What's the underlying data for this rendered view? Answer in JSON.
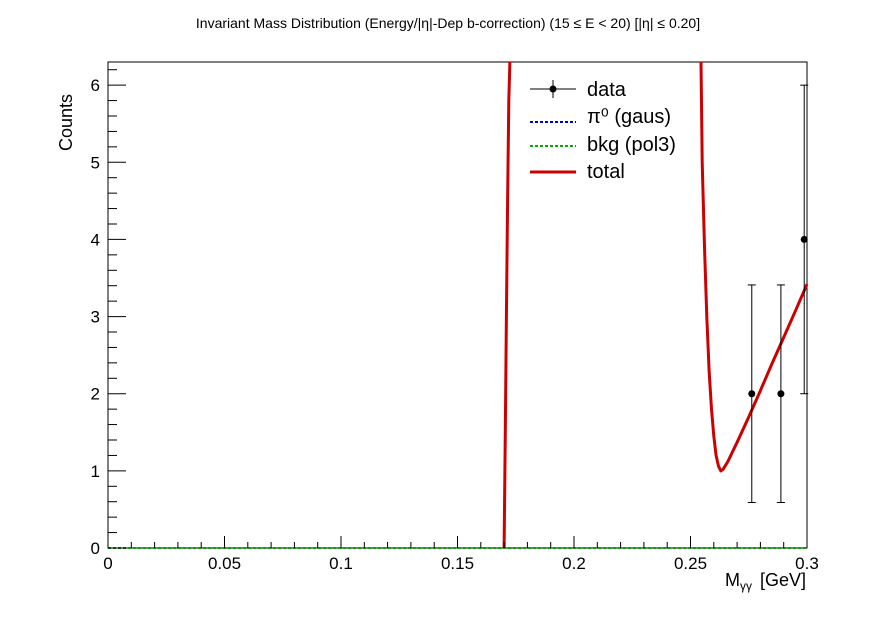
{
  "chart_data": {
    "type": "scatter",
    "title": "Invariant Mass Distribution (Energy/|η|-Dep b-correction)   (15 ≤ E < 20)   [|η| ≤ 0.20]",
    "xlabel": "M",
    "xlabel_sub": "γγ",
    "xlabel_unit": "[GeV]",
    "ylabel": "Counts",
    "xlim": [
      0,
      0.3
    ],
    "ylim": [
      0,
      6.3
    ],
    "x_ticks": [
      0,
      0.05,
      0.1,
      0.15,
      0.2,
      0.25,
      0.3
    ],
    "x_tick_labels": [
      "0",
      "0.05",
      "0.1",
      "0.15",
      "0.2",
      "0.25",
      "0.3"
    ],
    "y_ticks": [
      0,
      1,
      2,
      3,
      4,
      5,
      6
    ],
    "y_tick_labels": [
      "0",
      "1",
      "2",
      "3",
      "4",
      "5",
      "6"
    ],
    "grid": false,
    "legend_position": "top-right",
    "series": [
      {
        "name": "data",
        "kind": "points-with-errors",
        "color": "#000000",
        "points": [
          {
            "x": 0.2763,
            "y": 2,
            "err_low": 1.41,
            "err_high": 1.41
          },
          {
            "x": 0.2888,
            "y": 2,
            "err_low": 1.41,
            "err_high": 1.41
          },
          {
            "x": 0.2988,
            "y": 4,
            "err_low": 2.0,
            "err_high": 2.0
          }
        ]
      },
      {
        "name": "π⁰ (gaus)",
        "kind": "line",
        "style": "dotted",
        "color": "#0000cc",
        "x": [
          0,
          0.3
        ],
        "y": [
          0,
          0
        ]
      },
      {
        "name": "bkg (pol3)",
        "kind": "line",
        "style": "dotted",
        "color": "#00aa00",
        "x": [
          0,
          0.3
        ],
        "y": [
          0,
          0
        ]
      },
      {
        "name": "total",
        "kind": "line",
        "style": "solid",
        "color": "#cc0000",
        "segments": [
          {
            "x": [
              0.17,
              0.1705,
              0.171,
              0.1715,
              0.172,
              0.1725
            ],
            "y": [
              0.0,
              1.5,
              3.0,
              4.5,
              5.8,
              6.3
            ]
          },
          {
            "x": [
              0.2545,
              0.255,
              0.256,
              0.257,
              0.258,
              0.259,
              0.26,
              0.261,
              0.262,
              0.263,
              0.264,
              0.266,
              0.27,
              0.275,
              0.28,
              0.285,
              0.29,
              0.295,
              0.3
            ],
            "y": [
              6.3,
              5.0,
              3.9,
              3.0,
              2.3,
              1.8,
              1.45,
              1.2,
              1.06,
              1.0,
              1.02,
              1.12,
              1.37,
              1.7,
              2.04,
              2.39,
              2.73,
              3.07,
              3.42
            ]
          }
        ]
      }
    ]
  }
}
